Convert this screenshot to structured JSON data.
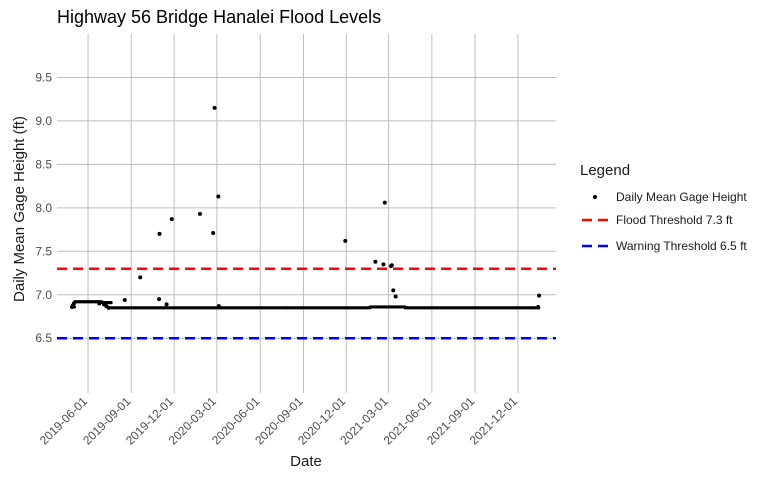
{
  "chart_data": {
    "type": "scatter",
    "title": "Highway 56 Bridge Hanalei Flood Levels",
    "xlabel": "Date",
    "ylabel": "Daily Mean Gage Height (ft)",
    "xlim": [
      "2019-03-27",
      "2022-02-20"
    ],
    "ylim": [
      5.87,
      10.0
    ],
    "x_ticks": [
      "2019-06-01",
      "2019-09-01",
      "2019-12-01",
      "2020-03-01",
      "2020-06-01",
      "2020-09-01",
      "2020-12-01",
      "2021-03-01",
      "2021-06-01",
      "2021-09-01",
      "2021-12-01"
    ],
    "y_ticks": [
      6.5,
      7.0,
      7.5,
      8.0,
      8.5,
      9.0,
      9.5
    ],
    "grid": true,
    "legend": {
      "title": "Legend",
      "placement": "right",
      "entries": [
        {
          "label": "Daily Mean Gage Height",
          "kind": "point",
          "color": "#000000"
        },
        {
          "label": "Flood Threshold 7.3 ft",
          "kind": "dashed-line",
          "color": "#ff0000"
        },
        {
          "label": "Warning Threshold 6.5 ft",
          "kind": "dashed-line",
          "color": "#0000ff"
        }
      ]
    },
    "thresholds": [
      {
        "name": "Flood Threshold 7.3 ft",
        "y": 7.3,
        "color": "#ff0000"
      },
      {
        "name": "Warning Threshold 6.5 ft",
        "y": 6.5,
        "color": "#0000ff"
      }
    ],
    "series": [
      {
        "name": "Daily Mean Gage Height",
        "color": "#000000",
        "baseline_segments": [
          {
            "start": "2019-04-28",
            "end": "2019-05-03",
            "y": 6.86
          },
          {
            "start": "2019-05-04",
            "end": "2019-06-30",
            "y": 6.92
          },
          {
            "start": "2019-07-01",
            "end": "2019-07-20",
            "y": 6.91
          },
          {
            "start": "2019-07-21",
            "end": "2020-07-25",
            "y": 6.85
          },
          {
            "start": "2020-07-26",
            "end": "2020-12-05",
            "y": 6.85
          },
          {
            "start": "2020-12-06",
            "end": "2021-01-20",
            "y": 6.85
          },
          {
            "start": "2021-01-21",
            "end": "2021-04-05",
            "y": 6.86
          },
          {
            "start": "2021-04-06",
            "end": "2021-12-31",
            "y": 6.85
          },
          {
            "start": "2022-01-01",
            "end": "2022-01-14",
            "y": 6.85
          }
        ],
        "points": [
          {
            "x": "2019-04-28",
            "y": 6.86
          },
          {
            "x": "2019-04-30",
            "y": 6.88
          },
          {
            "x": "2019-05-02",
            "y": 6.9
          },
          {
            "x": "2019-06-25",
            "y": 6.9
          },
          {
            "x": "2019-07-05",
            "y": 6.89
          },
          {
            "x": "2019-07-10",
            "y": 6.87
          },
          {
            "x": "2019-07-15",
            "y": 6.85
          },
          {
            "x": "2019-08-18",
            "y": 6.94
          },
          {
            "x": "2019-09-20",
            "y": 7.2
          },
          {
            "x": "2019-10-30",
            "y": 6.95
          },
          {
            "x": "2019-10-31",
            "y": 7.7
          },
          {
            "x": "2019-11-15",
            "y": 6.89
          },
          {
            "x": "2019-11-26",
            "y": 7.87
          },
          {
            "x": "2020-01-25",
            "y": 7.93
          },
          {
            "x": "2020-02-22",
            "y": 7.71
          },
          {
            "x": "2020-02-25",
            "y": 9.15
          },
          {
            "x": "2020-03-04",
            "y": 8.13
          },
          {
            "x": "2020-03-05",
            "y": 6.87
          },
          {
            "x": "2020-11-29",
            "y": 7.62
          },
          {
            "x": "2021-02-01",
            "y": 7.38
          },
          {
            "x": "2021-02-18",
            "y": 7.35
          },
          {
            "x": "2021-02-21",
            "y": 8.06
          },
          {
            "x": "2021-03-06",
            "y": 7.33
          },
          {
            "x": "2021-03-08",
            "y": 7.34
          },
          {
            "x": "2021-03-11",
            "y": 7.05
          },
          {
            "x": "2021-03-16",
            "y": 6.98
          },
          {
            "x": "2022-01-13",
            "y": 6.86
          },
          {
            "x": "2022-01-15",
            "y": 6.99
          }
        ]
      }
    ]
  }
}
